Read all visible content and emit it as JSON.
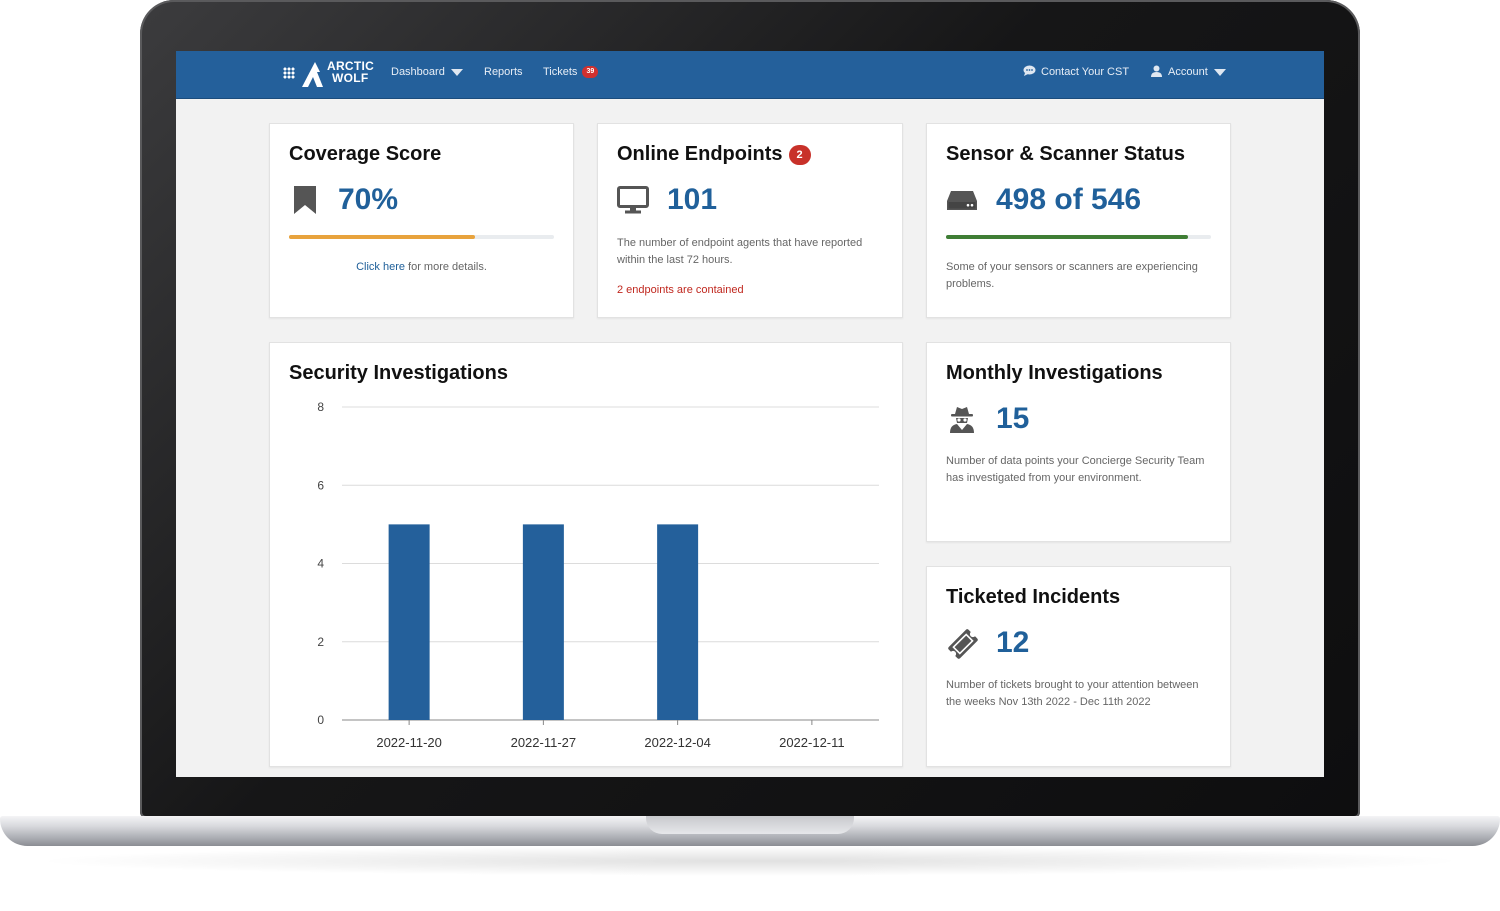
{
  "nav": {
    "logo_line1": "ARCTIC",
    "logo_line2": "WOLF",
    "dashboard": "Dashboard",
    "reports": "Reports",
    "tickets": "Tickets",
    "tickets_count": "39",
    "contact": "Contact Your CST",
    "account": "Account"
  },
  "coverage": {
    "title": "Coverage Score",
    "value": "70%",
    "progress": 0.7,
    "link_text": "Click here",
    "link_suffix": " for more details.",
    "bar_color": "#e8a33d"
  },
  "endpoints": {
    "title": "Online Endpoints",
    "badge": "2",
    "value": "101",
    "description": "The number of endpoint agents that have reported within the last 72 hours.",
    "note": "2 endpoints are contained"
  },
  "sensors": {
    "title": "Sensor & Scanner Status",
    "value": "498 of 546",
    "progress": 0.912,
    "description": "Some of your sensors or scanners are experiencing problems.",
    "bar_color": "#3f7e35"
  },
  "security": {
    "title": "Security Investigations"
  },
  "monthly": {
    "title": "Monthly Investigations",
    "value": "15",
    "description": "Number of data points your Concierge Security Team has investigated from your environment."
  },
  "tickets_card": {
    "title": "Ticketed Incidents",
    "value": "12",
    "description": "Number of tickets brought to your attention between the weeks Nov 13th 2022 - Dec 11th 2022"
  },
  "chart_data": {
    "type": "bar",
    "categories": [
      "2022-11-20",
      "2022-11-27",
      "2022-12-04",
      "2022-12-11"
    ],
    "values": [
      5,
      5,
      5,
      0
    ],
    "ylim": [
      0,
      8
    ],
    "yticks": [
      0,
      2,
      4,
      6,
      8
    ],
    "grid": true,
    "bar_color": "#24609b"
  },
  "colors": {
    "accent": "#20609a",
    "nav_bg": "#24609b",
    "alert": "#c8312a"
  }
}
